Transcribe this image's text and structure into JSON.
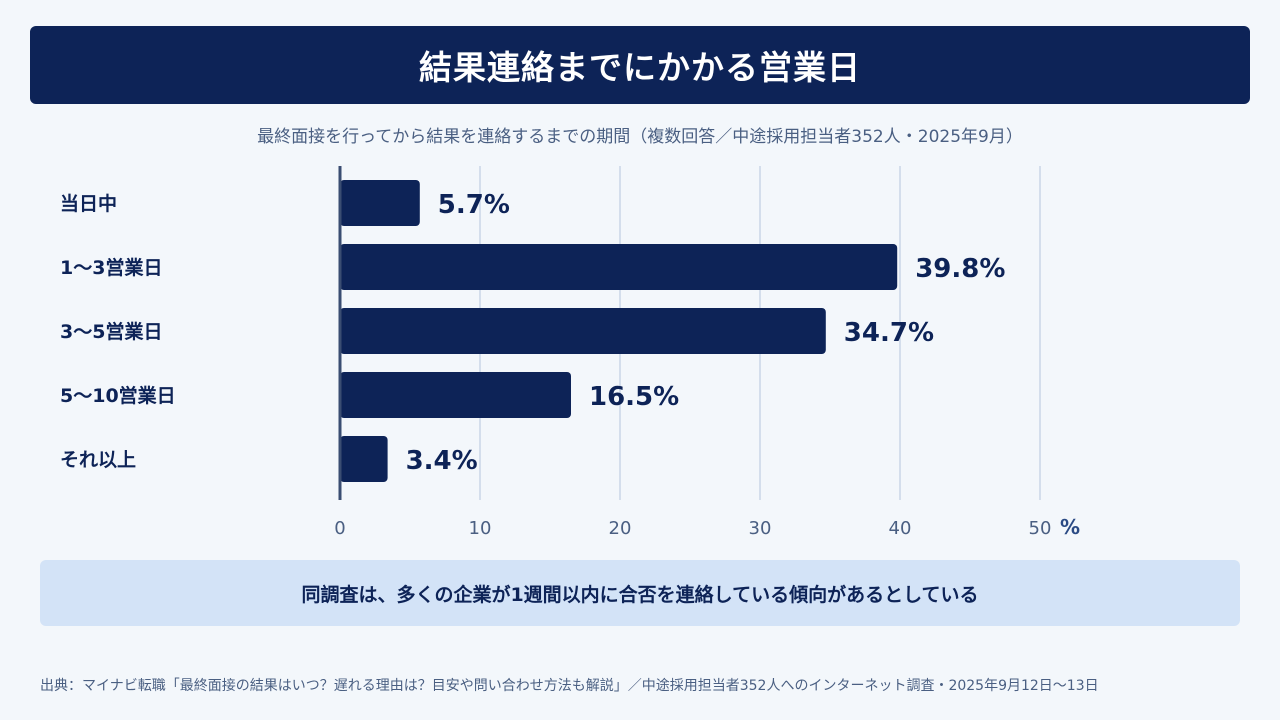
{
  "header": {
    "title": "結果連絡までにかかる営業日"
  },
  "chart_data": {
    "type": "bar",
    "orientation": "horizontal",
    "subtitle": "最終面接を行ってから結果を連絡するまでの期間（複数回答／中途採用担当者352人・2025年9月）",
    "categories": [
      "当日中",
      "1〜3営業日",
      "3〜5営業日",
      "5〜10営業日",
      "それ以上"
    ],
    "values": [
      5.7,
      39.8,
      34.7,
      16.5,
      3.4
    ],
    "value_labels": [
      "5.7%",
      "39.8%",
      "34.7%",
      "16.5%",
      "3.4%"
    ],
    "xlim": [
      0,
      50
    ],
    "ticks": [
      "0",
      "10",
      "20",
      "30",
      "40",
      "50"
    ],
    "tick_values": [
      0,
      10,
      20,
      30,
      40,
      50
    ],
    "unit": "%",
    "grid": true,
    "colors": {
      "bar": "#0d2357",
      "grid": "#c9d6e8",
      "axis": "#3a4d72"
    }
  },
  "note": {
    "text": "同調査は、多くの企業が1週間以内に合否を連絡している傾向があるとしている"
  },
  "footer": {
    "source": "出典：マイナビ転職「最終面接の結果はいつ？遅れる理由は？目安や問い合わせ方法も解説」／中途採用担当者352人へのインターネット調査・2025年9月12日〜13日"
  }
}
